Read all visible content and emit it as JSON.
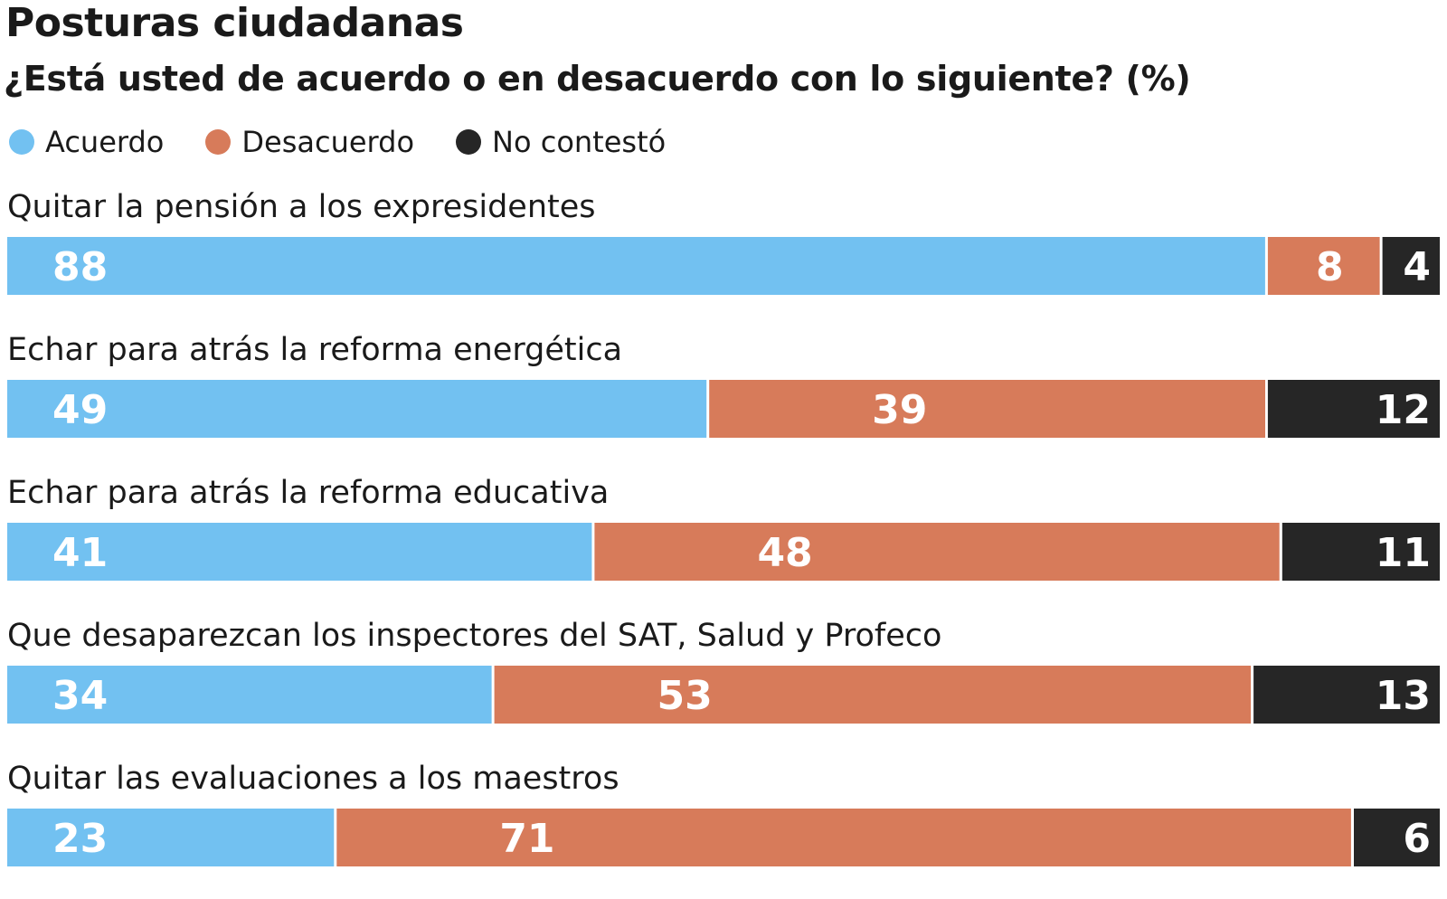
{
  "title": "Posturas ciudadanas",
  "subtitle": "¿Está usted de acuerdo o en desacuerdo con lo siguiente? (%)",
  "legend": [
    {
      "label": "Acuerdo",
      "color": "#72c1f1"
    },
    {
      "label": "Desacuerdo",
      "color": "#d77b5a"
    },
    {
      "label": "No contestó",
      "color": "#262626"
    }
  ],
  "chart_data": {
    "type": "bar",
    "orientation": "horizontal",
    "stacked": true,
    "unit": "%",
    "categories": [
      "Quitar la pensión a los expresidentes",
      "Echar para atrás la reforma energética",
      "Echar para atrás la reforma educativa",
      "Que desaparezcan los inspectores del SAT, Salud y Profeco",
      "Quitar las evaluaciones a los maestros"
    ],
    "series": [
      {
        "name": "Acuerdo",
        "color": "#72c1f1",
        "values": [
          88,
          49,
          41,
          34,
          23
        ]
      },
      {
        "name": "Desacuerdo",
        "color": "#d77b5a",
        "values": [
          8,
          39,
          48,
          53,
          71
        ]
      },
      {
        "name": "No contestó",
        "color": "#262626",
        "values": [
          4,
          12,
          11,
          13,
          6
        ]
      }
    ],
    "title": "Posturas ciudadanas",
    "subtitle": "¿Está usted de acuerdo o en desacuerdo con lo siguiente? (%)",
    "xlim": [
      0,
      100
    ],
    "grid": false,
    "legend_position": "top-left"
  }
}
